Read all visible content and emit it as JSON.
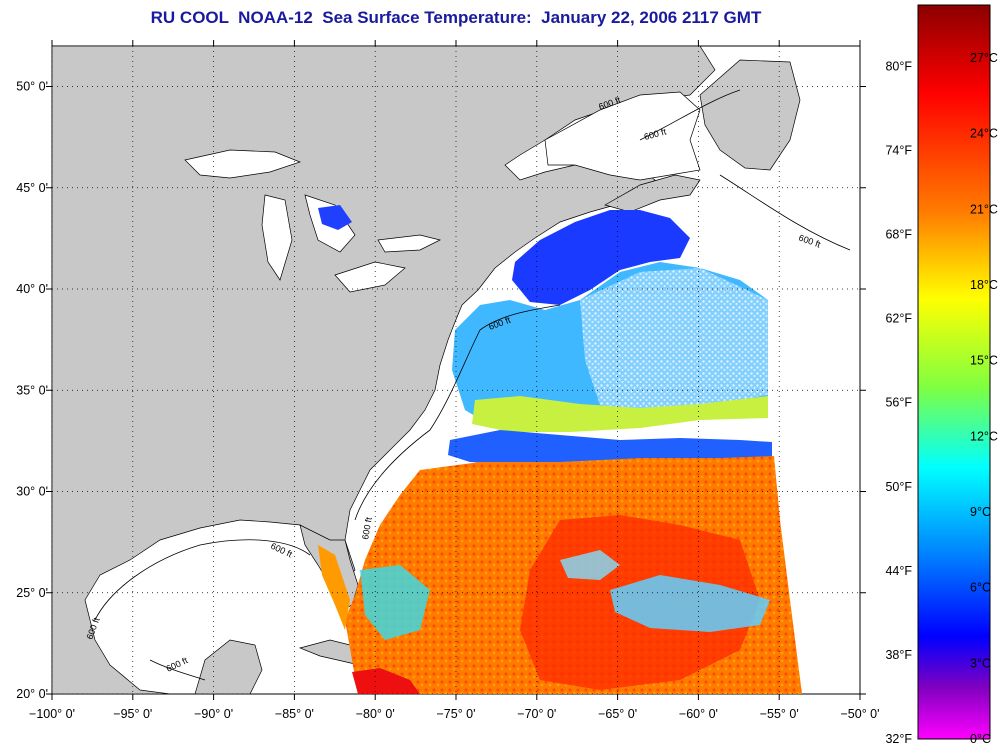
{
  "title": "RU COOL  NOAA-12  Sea Surface Temperature:  January 22, 2006 2117 GMT",
  "map": {
    "lon_range": [
      -100,
      -50
    ],
    "lat_range": [
      20,
      52
    ],
    "lon_ticks": [
      "−100° 0'",
      "−95° 0'",
      "−90° 0'",
      "−85° 0'",
      "−80° 0'",
      "−75° 0'",
      "−70° 0'",
      "−65° 0'",
      "−60° 0'",
      "−55° 0'",
      "−50° 0'"
    ],
    "lat_ticks": [
      "20° 0'",
      "25° 0'",
      "30° 0'",
      "35° 0'",
      "40° 0'",
      "45° 0'",
      "50° 0'"
    ],
    "contour_label": "600 ft",
    "land_color": "#c8c8c8",
    "water_nodata_color": "#ffffff",
    "grid": "dotted"
  },
  "colorbar": {
    "celsius_labels": [
      "27°C",
      "24°C",
      "21°C",
      "18°C",
      "15°C",
      "12°C",
      "9°C",
      "6°C",
      "3°C",
      "0°C"
    ],
    "fahrenheit_labels": [
      "80°F",
      "74°F",
      "68°F",
      "62°F",
      "56°F",
      "50°F",
      "44°F",
      "38°F",
      "32°F"
    ],
    "colors": [
      "#8b0000",
      "#ff0000",
      "#ff8c00",
      "#ffff00",
      "#80ff40",
      "#00ffff",
      "#0080ff",
      "#0000ff",
      "#8000c0",
      "#ff00ff"
    ]
  }
}
